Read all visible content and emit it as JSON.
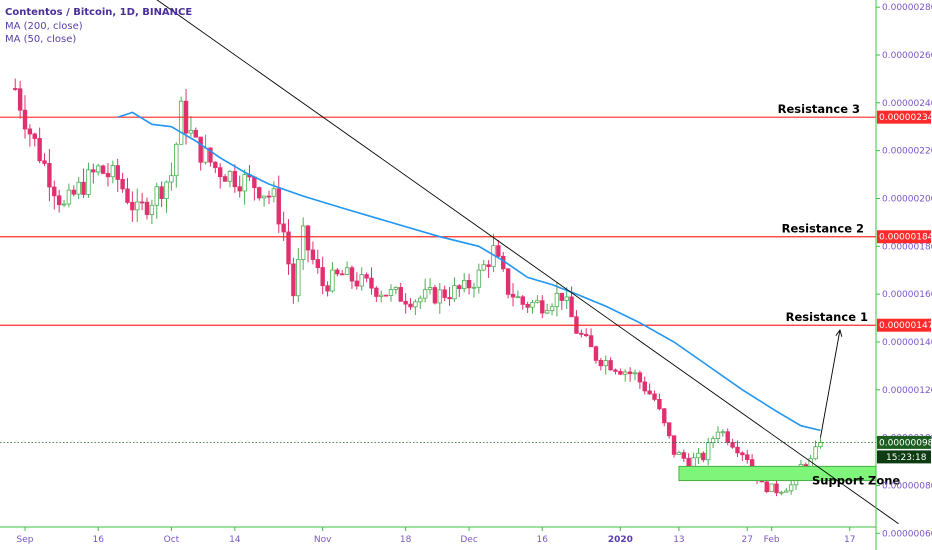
{
  "legend": {
    "title": "Contentos / Bitcoin, 1D, BINANCE",
    "ma200": "MA (200, close)",
    "ma50": "MA (50, close)"
  },
  "colors": {
    "up": "#4caf50",
    "down": "#e0306f",
    "ma": "#2196f3",
    "resistance": "#ff2b2b",
    "support_fill": "#7ff57a",
    "trendline": "#000000",
    "axis_text": "#7a56c8",
    "green_tag": "#1b5e20"
  },
  "chart_data": {
    "type": "candlestick",
    "symbol": "Contentos / Bitcoin",
    "timeframe": "1D",
    "exchange": "BINANCE",
    "y_axis": {
      "ylim": [
        5.3e-07,
        2.83e-06
      ],
      "ticks": [
        "0.00000060",
        "0.00000080",
        "0.00000100",
        "0.00000120",
        "0.00000140",
        "0.00000160",
        "0.00000180",
        "0.00000200",
        "0.00000220",
        "0.00000240",
        "0.00000260",
        "0.00000280"
      ],
      "tick_values": [
        6e-07,
        8e-07,
        1e-06,
        1.2e-06,
        1.4e-06,
        1.6e-06,
        1.8e-06,
        2e-06,
        2.2e-06,
        2.4e-06,
        2.6e-06,
        2.8e-06
      ]
    },
    "x_axis": {
      "ticks": [
        {
          "label": "Sep",
          "date": "2019-09-01"
        },
        {
          "label": "16",
          "date": "2019-09-16"
        },
        {
          "label": "Oct",
          "date": "2019-10-01"
        },
        {
          "label": "14",
          "date": "2019-10-14"
        },
        {
          "label": "Nov",
          "date": "2019-11-01"
        },
        {
          "label": "18",
          "date": "2019-11-18"
        },
        {
          "label": "Dec",
          "date": "2019-12-01"
        },
        {
          "label": "16",
          "date": "2019-12-16"
        },
        {
          "label": "2020",
          "date": "2020-01-01",
          "bold": true
        },
        {
          "label": "13",
          "date": "2020-01-13"
        },
        {
          "label": "27",
          "date": "2020-01-27"
        },
        {
          "label": "Feb",
          "date": "2020-02-01"
        },
        {
          "label": "17",
          "date": "2020-02-17"
        }
      ]
    },
    "price_path": {
      "start_date": "2019-08-30",
      "end_date": "2020-02-11",
      "close_keypoints": [
        [
          "2019-08-30",
          2.46e-06
        ],
        [
          "2019-09-02",
          2.28e-06
        ],
        [
          "2019-09-05",
          2.14e-06
        ],
        [
          "2019-09-09",
          1.96e-06
        ],
        [
          "2019-09-12",
          2.04e-06
        ],
        [
          "2019-09-16",
          2.12e-06
        ],
        [
          "2019-09-20",
          2.08e-06
        ],
        [
          "2019-09-24",
          1.94e-06
        ],
        [
          "2019-09-27",
          2e-06
        ],
        [
          "2019-10-01",
          2.1e-06
        ],
        [
          "2019-10-03",
          2.36e-06
        ],
        [
          "2019-10-06",
          2.22e-06
        ],
        [
          "2019-10-10",
          2.13e-06
        ],
        [
          "2019-10-14",
          2.09e-06
        ],
        [
          "2019-10-18",
          2.06e-06
        ],
        [
          "2019-10-22",
          2e-06
        ],
        [
          "2019-10-24",
          1.86e-06
        ],
        [
          "2019-10-26",
          1.6e-06
        ],
        [
          "2019-10-28",
          1.84e-06
        ],
        [
          "2019-11-01",
          1.64e-06
        ],
        [
          "2019-11-05",
          1.68e-06
        ],
        [
          "2019-11-10",
          1.64e-06
        ],
        [
          "2019-11-15",
          1.6e-06
        ],
        [
          "2019-11-20",
          1.58e-06
        ],
        [
          "2019-11-25",
          1.6e-06
        ],
        [
          "2019-11-30",
          1.62e-06
        ],
        [
          "2019-12-03",
          1.68e-06
        ],
        [
          "2019-12-06",
          1.78e-06
        ],
        [
          "2019-12-09",
          1.62e-06
        ],
        [
          "2019-12-12",
          1.56e-06
        ],
        [
          "2019-12-16",
          1.56e-06
        ],
        [
          "2019-12-20",
          1.6e-06
        ],
        [
          "2019-12-23",
          1.45e-06
        ],
        [
          "2019-12-27",
          1.34e-06
        ],
        [
          "2019-12-31",
          1.3e-06
        ],
        [
          "2020-01-04",
          1.26e-06
        ],
        [
          "2020-01-08",
          1.16e-06
        ],
        [
          "2020-01-12",
          9.4e-07
        ],
        [
          "2020-01-15",
          9e-07
        ],
        [
          "2020-01-18",
          9.2e-07
        ],
        [
          "2020-01-21",
          1.04e-06
        ],
        [
          "2020-01-24",
          9.8e-07
        ],
        [
          "2020-01-27",
          9.2e-07
        ],
        [
          "2020-01-30",
          8e-07
        ],
        [
          "2020-02-02",
          7.8e-07
        ],
        [
          "2020-02-05",
          8e-07
        ],
        [
          "2020-02-07",
          8.8e-07
        ],
        [
          "2020-02-09",
          9e-07
        ],
        [
          "2020-02-11",
          9.8e-07
        ]
      ]
    },
    "ma_line": {
      "name": "MA (50, close)",
      "points": [
        [
          "2019-09-20",
          2.34e-06
        ],
        [
          "2019-09-23",
          2.36e-06
        ],
        [
          "2019-09-27",
          2.31e-06
        ],
        [
          "2019-10-01",
          2.3e-06
        ],
        [
          "2019-10-06",
          2.24e-06
        ],
        [
          "2019-10-11",
          2.17e-06
        ],
        [
          "2019-10-16",
          2.11e-06
        ],
        [
          "2019-10-21",
          2.06e-06
        ],
        [
          "2019-10-28",
          2.01e-06
        ],
        [
          "2019-11-05",
          1.96e-06
        ],
        [
          "2019-11-15",
          1.9e-06
        ],
        [
          "2019-11-25",
          1.84e-06
        ],
        [
          "2019-12-03",
          1.8e-06
        ],
        [
          "2019-12-08",
          1.74e-06
        ],
        [
          "2019-12-13",
          1.67e-06
        ],
        [
          "2019-12-18",
          1.64e-06
        ],
        [
          "2019-12-23",
          1.6e-06
        ],
        [
          "2019-12-29",
          1.55e-06
        ],
        [
          "2020-01-05",
          1.48e-06
        ],
        [
          "2020-01-12",
          1.4e-06
        ],
        [
          "2020-01-19",
          1.3e-06
        ],
        [
          "2020-01-26",
          1.2e-06
        ],
        [
          "2020-02-02",
          1.11e-06
        ],
        [
          "2020-02-07",
          1.05e-06
        ],
        [
          "2020-02-11",
          1.03e-06
        ]
      ]
    },
    "resistance_levels": [
      {
        "label": "Resistance 3",
        "value": 2.34e-06,
        "tag": "0.00000234"
      },
      {
        "label": "Resistance 2",
        "value": 1.84e-06,
        "tag": "0.00000184"
      },
      {
        "label": "Resistance 1",
        "value": 1.47e-06,
        "tag": "0.00000147"
      }
    ],
    "support_zone": {
      "label": "Support Zone",
      "from_date": "2020-01-13",
      "to_date": "2020-02-27",
      "low": 8.2e-07,
      "high": 8.8e-07
    },
    "trendline": {
      "from": [
        "2019-09-26",
        2.86e-06
      ],
      "to": [
        "2020-02-27",
        6.4e-07
      ]
    },
    "projection_arrow": {
      "from": [
        "2020-02-11",
        1e-06
      ],
      "to": [
        "2020-02-15",
        1.45e-06
      ]
    },
    "current_price": {
      "value": 9.8e-07,
      "tag": "0.00000098",
      "countdown": "15:23:18"
    }
  }
}
